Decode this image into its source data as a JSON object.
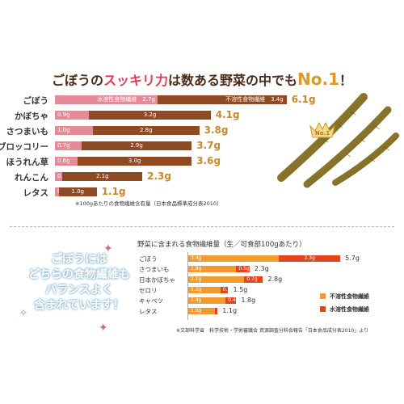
{
  "headline": {
    "part1": "ごぼうの",
    "highlight": "スッキリ力",
    "part2": "は数ある野菜の中でも",
    "no1": "No.1",
    "part3": "！"
  },
  "badge": {
    "text": "No.1"
  },
  "colors": {
    "c1_soluble": "#e58a97",
    "c1_insoluble": "#8e4a22",
    "c1_total": "#c58a2a",
    "c2_soluble": "#e2451b",
    "c2_insoluble": "#f29a2e",
    "headline": "#4a2a16",
    "highlight": "#e23a54",
    "burdock": "#8c7a2a"
  },
  "chart_data": [
    {
      "type": "bar",
      "stacked": true,
      "orientation": "horizontal",
      "categories": [
        "ごぼう",
        "かぼちゃ",
        "さつまいも",
        "ブロッコリー",
        "ほうれん草",
        "れんこん",
        "レタス"
      ],
      "series": [
        {
          "name": "水溶性食物繊維",
          "values": [
            2.7,
            0.9,
            1.0,
            0.7,
            0.6,
            0.2,
            0.1
          ]
        },
        {
          "name": "不溶性食物繊維",
          "values": [
            3.4,
            3.2,
            2.8,
            2.9,
            3.0,
            2.1,
            1.0
          ]
        }
      ],
      "series_labels": [
        "水溶性食物繊維",
        "不溶性食物繊維"
      ],
      "value_labels": {
        "soluble": [
          "2.7g",
          "0.9g",
          "1.0g",
          "0.7g",
          "0.6g",
          "0.2g",
          "0.1g"
        ],
        "insoluble": [
          "3.4g",
          "3.2g",
          "2.8g",
          "2.9g",
          "3.0g",
          "2.1g",
          "1.0g"
        ]
      },
      "totals": [
        6.1,
        4.1,
        3.8,
        3.7,
        3.6,
        2.3,
        1.1
      ],
      "total_labels": [
        "6.1g",
        "4.1g",
        "3.8g",
        "3.7g",
        "3.6g",
        "2.3g",
        "1.1g"
      ],
      "note": "※100gあたりの食物繊維含有量（日本食品標準成分表2010）",
      "legend": "inline",
      "grid": false
    },
    {
      "type": "bar",
      "stacked": true,
      "orientation": "horizontal",
      "title": "野菜に含まれる食物繊維量（生／可食部100gあたり）",
      "categories": [
        "ごぼう",
        "さつまいも",
        "日本かぼちゃ",
        "セロリ",
        "キャベツ",
        "レタス"
      ],
      "series": [
        {
          "name": "不溶性食物繊維",
          "values": [
            3.4,
            1.8,
            2.1,
            1.2,
            1.4,
            1.0
          ]
        },
        {
          "name": "水溶性食物繊維",
          "values": [
            2.3,
            0.5,
            0.7,
            0.3,
            0.4,
            0.1
          ]
        }
      ],
      "value_labels": {
        "insoluble": [
          "3.4g",
          "1.8g",
          "2.1g",
          "1.2g",
          "1.4g",
          "1.0g"
        ],
        "soluble": [
          "2.3g",
          "0.5g",
          "0.7g",
          "0.3g",
          "0.4g",
          "0.1g"
        ]
      },
      "totals": [
        5.7,
        2.3,
        2.8,
        1.5,
        1.8,
        1.1
      ],
      "total_labels": [
        "5.7g",
        "2.3g",
        "2.8g",
        "1.5g",
        "1.8g",
        "1.1g"
      ],
      "legend": "right",
      "grid": false,
      "source": "※文部科学省　科学技術・学術審議会 資源調査分科会報告「日本食品成分表2010」より"
    }
  ],
  "pitch": {
    "lines": [
      "ごぼうには",
      "どちらの食物繊維も",
      "バランスよく",
      "含まれています！"
    ]
  }
}
